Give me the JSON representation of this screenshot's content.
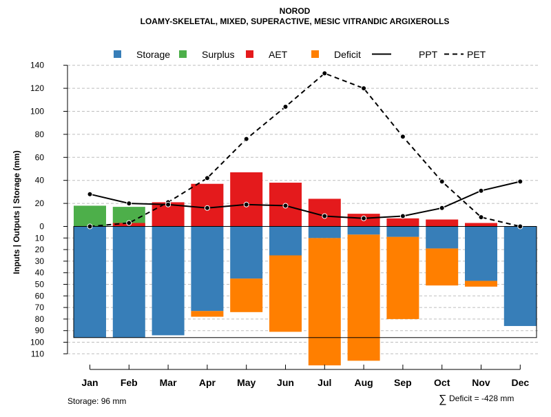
{
  "chart_data": {
    "type": "bar",
    "title": "NOROD",
    "subtitle": "LOAMY-SKELETAL, MIXED, SUPERACTIVE, MESIC VITRANDIC ARGIXEROLLS",
    "ylabel": "Inputs | Outputs | Storage     (mm)",
    "categories": [
      "Jan",
      "Feb",
      "Mar",
      "Apr",
      "May",
      "Jun",
      "Jul",
      "Aug",
      "Sep",
      "Oct",
      "Nov",
      "Dec"
    ],
    "upper_ticks": [
      0,
      20,
      40,
      60,
      80,
      100,
      120,
      140
    ],
    "lower_ticks": [
      10,
      20,
      30,
      40,
      50,
      60,
      70,
      80,
      90,
      100,
      110
    ],
    "ylim_upper": [
      0,
      140
    ],
    "ylim_lower": [
      0,
      110
    ],
    "legend": [
      {
        "label": "Storage",
        "kind": "box",
        "color": "#377eb8"
      },
      {
        "label": "Surplus",
        "kind": "box",
        "color": "#4daf4a"
      },
      {
        "label": "AET",
        "kind": "box",
        "color": "#e41a1c"
      },
      {
        "label": "Deficit",
        "kind": "box",
        "color": "#ff7f00"
      },
      {
        "label": "PPT",
        "kind": "solid",
        "color": "#000000"
      },
      {
        "label": "PET",
        "kind": "dashed",
        "color": "#000000"
      }
    ],
    "series": {
      "surplus": [
        18,
        17,
        0,
        0,
        0,
        0,
        0,
        0,
        0,
        0,
        0,
        0
      ],
      "aet": [
        0,
        3,
        21,
        37,
        47,
        38,
        24,
        11,
        7,
        6,
        3,
        0
      ],
      "storage": [
        96,
        96,
        94,
        73,
        45,
        25,
        10,
        7,
        9,
        19,
        47,
        86
      ],
      "deficit_bottom": [
        96,
        96,
        94,
        78,
        74,
        91,
        120,
        116,
        80,
        51,
        52,
        86
      ],
      "ppt": [
        28,
        20,
        19,
        16,
        19,
        18,
        9,
        7,
        9,
        16,
        31,
        39
      ],
      "pet": [
        0,
        3,
        21,
        42,
        76,
        104,
        133,
        120,
        78,
        39,
        8,
        0
      ]
    },
    "storage_capacity": 96,
    "footer_left": "Storage: 96 mm",
    "footer_right_symbol": "∑",
    "footer_right": "Deficit = -428 mm"
  }
}
